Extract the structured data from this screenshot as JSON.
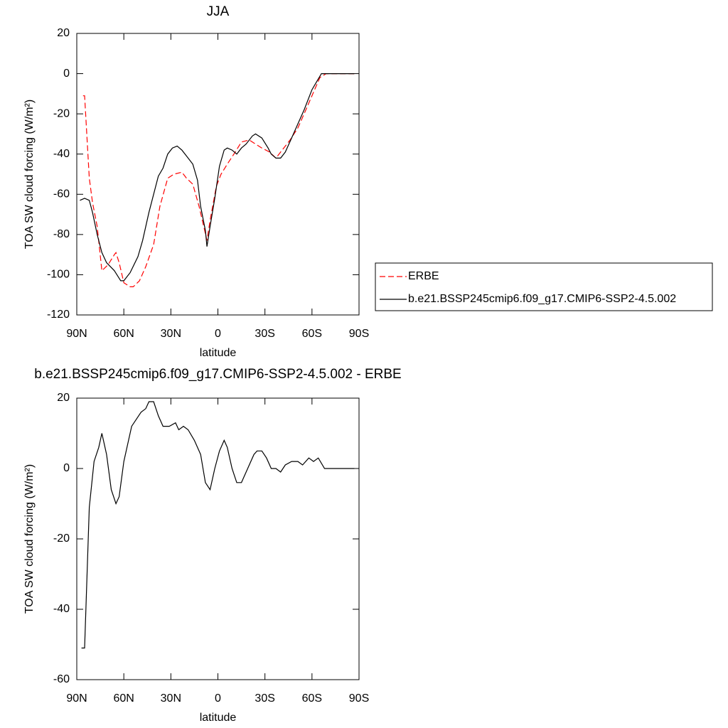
{
  "chart_data": [
    {
      "type": "line",
      "title": "JJA",
      "xlabel": "latitude",
      "ylabel": "TOA SW cloud forcing (W/m²)",
      "xlim": [
        90,
        -90
      ],
      "xticks": [
        {
          "value": 90,
          "label": "90N"
        },
        {
          "value": 60,
          "label": "60N"
        },
        {
          "value": 30,
          "label": "30N"
        },
        0,
        {
          "value": -30,
          "label": "30S"
        },
        {
          "value": -60,
          "label": "60S"
        },
        {
          "value": -90,
          "label": "90S"
        }
      ],
      "ylim": [
        -120,
        20
      ],
      "yticks": [
        20,
        0,
        -20,
        -40,
        -60,
        -80,
        -100,
        -120
      ],
      "legend": "right",
      "series": [
        {
          "name": "ERBE",
          "color": "#ff0000",
          "line_style": "dashed",
          "x": [
            86,
            85,
            82,
            80,
            77,
            74,
            70,
            66,
            65,
            63,
            60,
            56,
            54,
            50,
            46,
            41,
            37,
            32,
            28,
            23,
            20,
            16,
            12,
            9,
            7,
            5,
            1,
            -2,
            -6,
            -11,
            -15,
            -20,
            -24,
            -28,
            -33,
            -37,
            -41,
            -46,
            -51,
            -55,
            -60,
            -65,
            -69,
            -74,
            -79,
            -83,
            -87
          ],
          "values": [
            -11,
            -11,
            -52,
            -64,
            -76,
            -98,
            -95,
            -90,
            -89,
            -94,
            -104,
            -106,
            -106,
            -103,
            -96,
            -85,
            -66,
            -52,
            -50,
            -49,
            -52,
            -55,
            -66,
            -76,
            -83,
            -73,
            -56,
            -50,
            -45,
            -39,
            -34,
            -33,
            -35,
            -37,
            -39,
            -42,
            -38,
            -33,
            -27,
            -20,
            -11,
            -2,
            0,
            0,
            0,
            0,
            0
          ]
        },
        {
          "name": "b.e21.BSSP245cmip6.f09_g17.CMIP6-SSP2-4.5.002",
          "color": "#000000",
          "line_style": "solid",
          "x": [
            88,
            85,
            82,
            80,
            77,
            74,
            71,
            66,
            62,
            60,
            56,
            51,
            48,
            44,
            38,
            35,
            32,
            29,
            26,
            23,
            20,
            16,
            13,
            11,
            8,
            7,
            5,
            2,
            -1,
            -4,
            -6,
            -9,
            -12,
            -15,
            -18,
            -22,
            -24,
            -28,
            -32,
            -34,
            -37,
            -40,
            -43,
            -47,
            -51,
            -55,
            -60,
            -63,
            -66,
            -70,
            -74,
            -79,
            -83,
            -87
          ],
          "values": [
            -63,
            -62,
            -63,
            -69,
            -80,
            -89,
            -94,
            -98,
            -103,
            -103,
            -99,
            -91,
            -83,
            -69,
            -51,
            -47,
            -40,
            -37,
            -36,
            -38,
            -41,
            -45,
            -53,
            -66,
            -78,
            -86,
            -76,
            -62,
            -46,
            -38,
            -37,
            -38,
            -40,
            -37,
            -35,
            -31,
            -30,
            -32,
            -37,
            -40,
            -42,
            -42,
            -39,
            -32,
            -25,
            -18,
            -8,
            -4,
            0,
            0,
            0,
            0,
            0,
            0
          ]
        }
      ]
    },
    {
      "type": "line",
      "title": "b.e21.BSSP245cmip6.f09_g17.CMIP6-SSP2-4.5.002 - ERBE",
      "xlabel": "latitude",
      "ylabel": "TOA SW cloud forcing (W/m²)",
      "xlim": [
        90,
        -90
      ],
      "xticks": [
        {
          "value": 90,
          "label": "90N"
        },
        {
          "value": 60,
          "label": "60N"
        },
        {
          "value": 30,
          "label": "30N"
        },
        0,
        {
          "value": -30,
          "label": "30S"
        },
        {
          "value": -60,
          "label": "60S"
        },
        {
          "value": -90,
          "label": "90S"
        }
      ],
      "ylim": [
        -60,
        20
      ],
      "yticks": [
        20,
        0,
        -20,
        -40,
        -60
      ],
      "series": [
        {
          "color": "#000000",
          "line_style": "solid",
          "x": [
            87,
            85,
            82,
            79,
            76,
            74,
            71,
            68,
            65,
            63,
            60,
            57,
            55,
            52,
            49,
            46,
            44,
            41,
            38,
            35,
            31,
            27,
            25,
            22,
            19,
            15,
            11,
            8,
            5,
            2,
            -1,
            -4,
            -6,
            -9,
            -12,
            -15,
            -19,
            -23,
            -25,
            -28,
            -31,
            -34,
            -37,
            -40,
            -43,
            -47,
            -51,
            -54,
            -58,
            -61,
            -64,
            -68,
            -71,
            -75,
            -79,
            -82,
            -87
          ],
          "values": [
            -51,
            -51,
            -11,
            2,
            6,
            10,
            4,
            -6,
            -10,
            -8,
            2,
            8,
            12,
            14,
            16,
            17,
            19,
            19,
            15,
            12,
            12,
            13,
            11,
            12,
            11,
            8,
            4,
            -4,
            -6,
            0,
            5,
            8,
            6,
            0,
            -4,
            -4,
            0,
            4,
            5,
            5,
            3,
            0,
            0,
            -1,
            1,
            2,
            2,
            1,
            3,
            2,
            3,
            0,
            0,
            0,
            0,
            0,
            0
          ]
        }
      ]
    }
  ]
}
